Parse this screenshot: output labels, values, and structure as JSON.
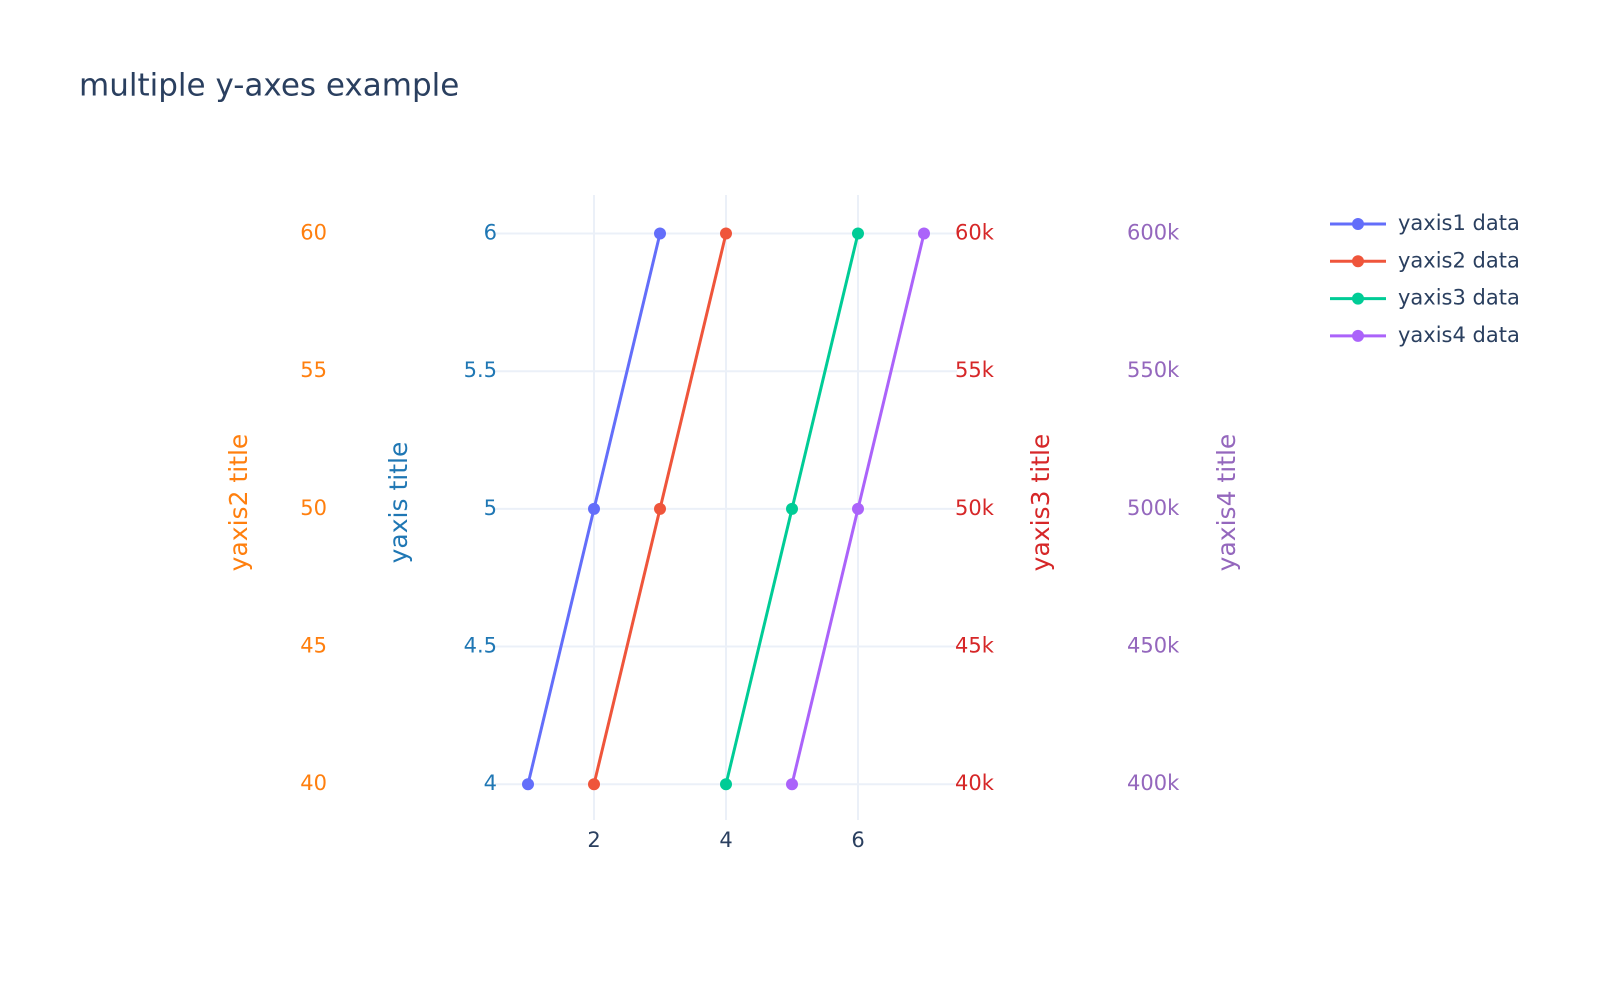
{
  "chart_data": {
    "type": "line",
    "title": "multiple y-axes example",
    "xlim": [
      0.5,
      7.5
    ],
    "xticks": [
      2,
      4,
      6
    ],
    "ylim": [
      3.87,
      6.14
    ],
    "yticks": [
      4,
      4.5,
      5,
      5.5,
      6
    ],
    "ylabel": "yaxis title",
    "ycolor": "#1f77b4",
    "y2lim": [
      38.7,
      61.4
    ],
    "y2ticks": [
      40,
      45,
      50,
      55,
      60
    ],
    "y2label": "yaxis2 title",
    "y2color": "#ff7f0e",
    "y3lim": [
      38700,
      61400
    ],
    "y3ticks": [
      {
        "value": 40000,
        "label": "40k"
      },
      {
        "value": 45000,
        "label": "45k"
      },
      {
        "value": 50000,
        "label": "50k"
      },
      {
        "value": 55000,
        "label": "55k"
      },
      {
        "value": 60000,
        "label": "60k"
      }
    ],
    "y3label": "yaxis3 title",
    "y3color": "#d62728",
    "y4lim": [
      387000,
      614000
    ],
    "y4ticks": [
      {
        "value": 400000,
        "label": "400k"
      },
      {
        "value": 450000,
        "label": "450k"
      },
      {
        "value": 500000,
        "label": "500k"
      },
      {
        "value": 550000,
        "label": "550k"
      },
      {
        "value": 600000,
        "label": "600k"
      }
    ],
    "y4label": "yaxis4 title",
    "y4color": "#9467bd",
    "grid": true,
    "legend": "upper right",
    "series": [
      {
        "name": "yaxis1 data",
        "color": "#636efa",
        "axis": "y",
        "x": [
          1,
          2,
          3
        ],
        "values": [
          4,
          5,
          6
        ]
      },
      {
        "name": "yaxis2 data",
        "color": "#EF553B",
        "axis": "y2",
        "x": [
          2,
          3,
          4
        ],
        "values": [
          40,
          50,
          60
        ]
      },
      {
        "name": "yaxis3 data",
        "color": "#00cc96",
        "axis": "y3",
        "x": [
          4,
          5,
          6
        ],
        "values": [
          40000,
          50000,
          60000
        ]
      },
      {
        "name": "yaxis4 data",
        "color": "#ab63fa",
        "axis": "y4",
        "x": [
          5,
          6,
          7
        ],
        "values": [
          400000,
          500000,
          600000
        ]
      }
    ]
  }
}
